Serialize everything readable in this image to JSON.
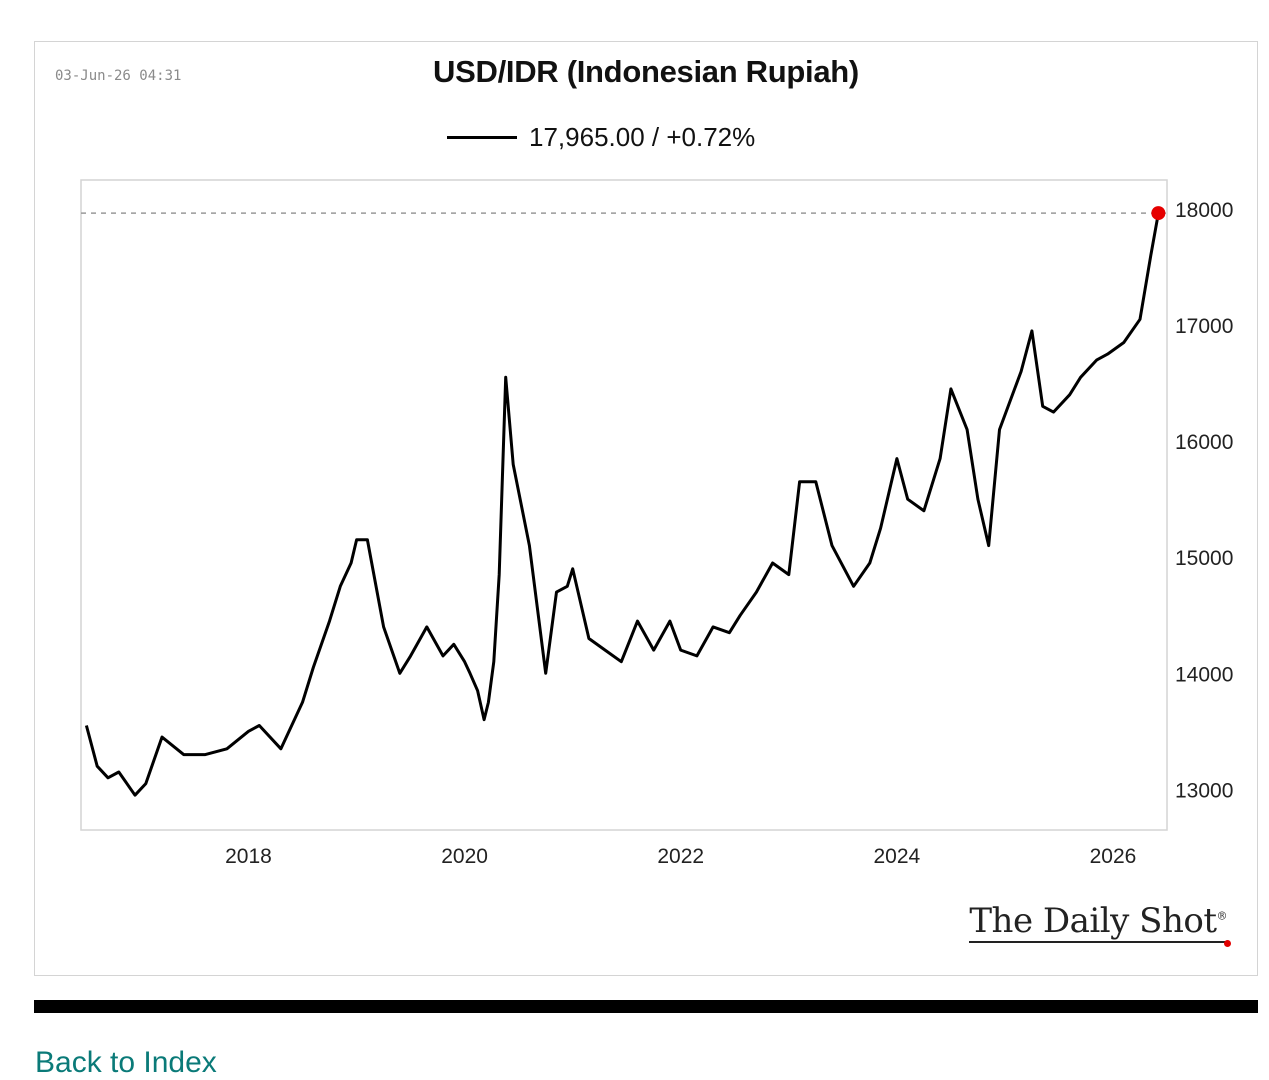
{
  "header": {
    "timestamp": "03-Jun-26 04:31",
    "title": "USD/IDR (Indonesian Rupiah)",
    "legend_text": "17,965.00 / +0.72%"
  },
  "logo": {
    "text": "The Daily Shot",
    "mark": "®"
  },
  "footer": {
    "back_link": "Back to Index"
  },
  "colors": {
    "line": "#000000",
    "last_point": "#e60000",
    "reference_line": "#999999",
    "link": "#0a7a78"
  },
  "chart_data": {
    "type": "line",
    "title": "USD/IDR (Indonesian Rupiah)",
    "series": [
      {
        "name": "17,965.00 / +0.72%",
        "x": [
          2016.5,
          2016.6,
          2016.7,
          2016.8,
          2016.95,
          2017.05,
          2017.2,
          2017.4,
          2017.6,
          2017.8,
          2018.0,
          2018.1,
          2018.3,
          2018.5,
          2018.6,
          2018.75,
          2018.85,
          2018.95,
          2019.0,
          2019.1,
          2019.25,
          2019.4,
          2019.5,
          2019.65,
          2019.8,
          2019.9,
          2020.0,
          2020.05,
          2020.12,
          2020.18,
          2020.22,
          2020.27,
          2020.32,
          2020.38,
          2020.45,
          2020.6,
          2020.75,
          2020.85,
          2020.95,
          2021.0,
          2021.15,
          2021.3,
          2021.45,
          2021.6,
          2021.75,
          2021.9,
          2022.0,
          2022.15,
          2022.3,
          2022.45,
          2022.55,
          2022.7,
          2022.85,
          2023.0,
          2023.1,
          2023.25,
          2023.4,
          2023.6,
          2023.75,
          2023.85,
          2024.0,
          2024.1,
          2024.25,
          2024.4,
          2024.5,
          2024.65,
          2024.75,
          2024.85,
          2024.95,
          2025.05,
          2025.15,
          2025.25,
          2025.35,
          2025.45,
          2025.6,
          2025.7,
          2025.85,
          2025.95,
          2026.1,
          2026.25,
          2026.35,
          2026.42
        ],
        "values": [
          13550,
          13200,
          13100,
          13150,
          12950,
          13050,
          13450,
          13300,
          13300,
          13350,
          13500,
          13550,
          13350,
          13750,
          14050,
          14450,
          14750,
          14950,
          15150,
          15150,
          14400,
          14000,
          14150,
          14400,
          14150,
          14250,
          14100,
          14000,
          13850,
          13600,
          13750,
          14100,
          14850,
          16550,
          15800,
          15100,
          14000,
          14700,
          14750,
          14900,
          14300,
          14200,
          14100,
          14450,
          14200,
          14450,
          14200,
          14150,
          14400,
          14350,
          14500,
          14700,
          14950,
          14850,
          15650,
          15650,
          15100,
          14750,
          14950,
          15250,
          15850,
          15500,
          15400,
          15850,
          16450,
          16100,
          15500,
          15100,
          16100,
          16350,
          16600,
          16950,
          16300,
          16250,
          16400,
          16550,
          16700,
          16750,
          16850,
          17050,
          17600,
          17965
        ]
      }
    ],
    "x_ticks": [
      2018,
      2020,
      2022,
      2024,
      2026
    ],
    "y_ticks": [
      13000,
      14000,
      15000,
      16000,
      17000,
      18000
    ],
    "xlim": [
      2016.45,
      2026.5
    ],
    "ylim": [
      12650,
      18250
    ],
    "last_value": 17965,
    "y_axis_side": "right",
    "grid": false
  }
}
